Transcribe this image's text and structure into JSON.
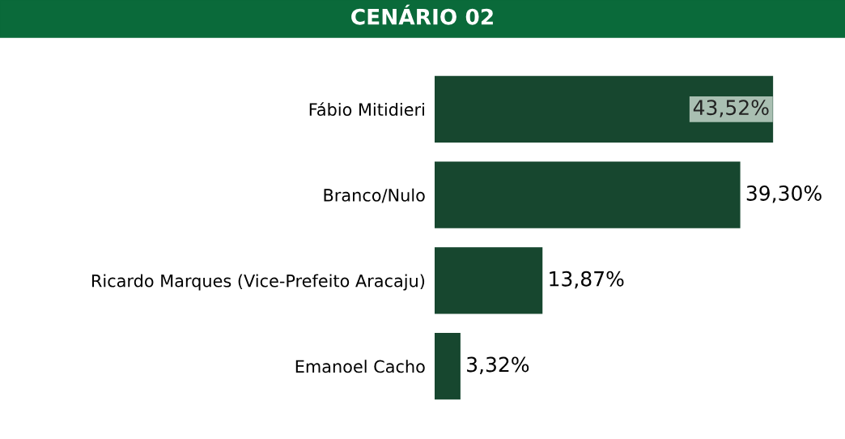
{
  "chart_data": {
    "type": "bar",
    "orientation": "horizontal",
    "title": "CENÁRIO 02",
    "categories": [
      "Fábio Mitidieri",
      "Branco/Nulo",
      "Ricardo Marques (Vice-Prefeito Aracaju)",
      "Emanoel Cacho"
    ],
    "values": [
      43.52,
      39.3,
      13.87,
      3.32
    ],
    "value_labels": [
      "43,52%",
      "39,30%",
      "13,87%",
      "3,32%"
    ],
    "color": "#17472f",
    "grid": false,
    "legend": false
  }
}
